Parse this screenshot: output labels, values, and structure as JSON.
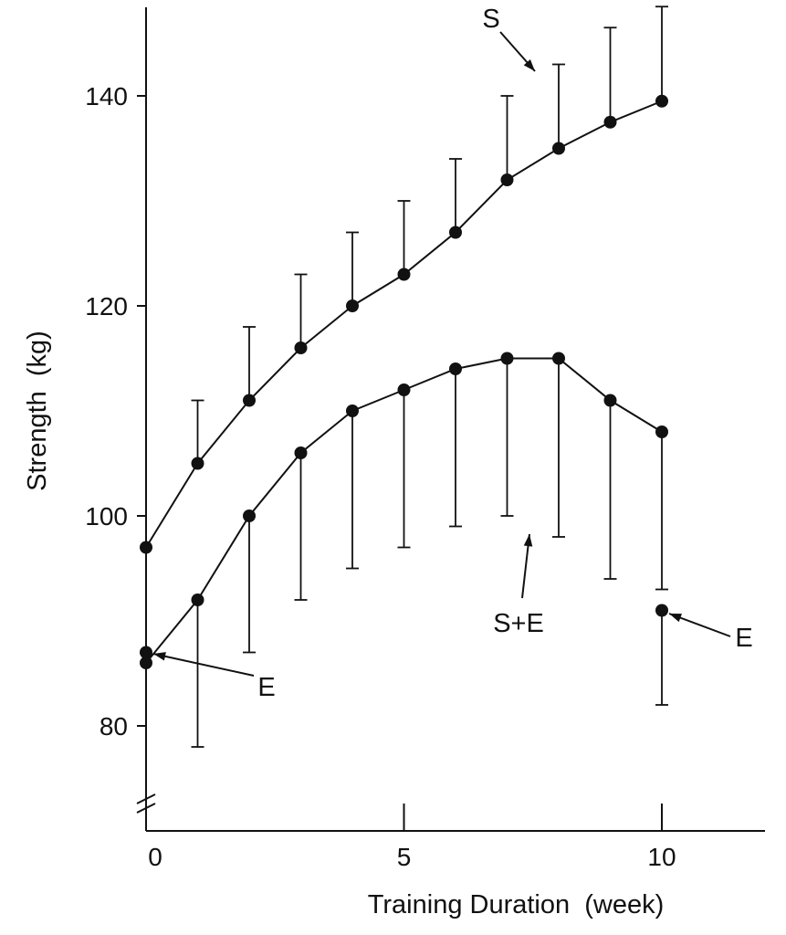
{
  "chart_data": {
    "type": "line",
    "title": "",
    "xlabel": "Training Duration  (week)",
    "ylabel": "Strength  (kg)",
    "xlim": [
      0,
      12
    ],
    "ylim": [
      70,
      148
    ],
    "x_ticks": [
      0,
      5,
      10
    ],
    "x_tick_labels": [
      "0",
      "5",
      "10"
    ],
    "y_ticks": [
      80,
      100,
      120,
      140
    ],
    "y_tick_labels": [
      "80",
      "100",
      "120",
      "140"
    ],
    "grid": false,
    "series": [
      {
        "name": "S",
        "x": [
          0,
          1,
          2,
          3,
          4,
          5,
          6,
          7,
          8,
          9,
          10
        ],
        "values": [
          97,
          105,
          111,
          116,
          120,
          123,
          127,
          132,
          135,
          137.5,
          139.5
        ],
        "error": [
          0,
          6,
          7,
          7,
          7,
          7,
          7,
          8,
          8,
          9,
          9
        ]
      },
      {
        "name": "S+E",
        "x": [
          0,
          1,
          2,
          3,
          4,
          5,
          6,
          7,
          8,
          9,
          10
        ],
        "values": [
          86,
          92,
          100,
          106,
          110,
          112,
          114,
          115,
          115,
          111,
          108
        ],
        "error": [
          0,
          14,
          13,
          14,
          15,
          15,
          15,
          15,
          17,
          17,
          15
        ]
      },
      {
        "name": "E",
        "x": [
          0,
          10
        ],
        "values": [
          87,
          91
        ],
        "error": [
          0,
          9
        ]
      }
    ],
    "annotations": [
      {
        "text": "S",
        "target_series": "S"
      },
      {
        "text": "S+E",
        "target_series": "S+E"
      },
      {
        "text": "E",
        "target_series": "E",
        "at": 0
      },
      {
        "text": "E",
        "target_series": "E",
        "at": 10
      }
    ]
  }
}
